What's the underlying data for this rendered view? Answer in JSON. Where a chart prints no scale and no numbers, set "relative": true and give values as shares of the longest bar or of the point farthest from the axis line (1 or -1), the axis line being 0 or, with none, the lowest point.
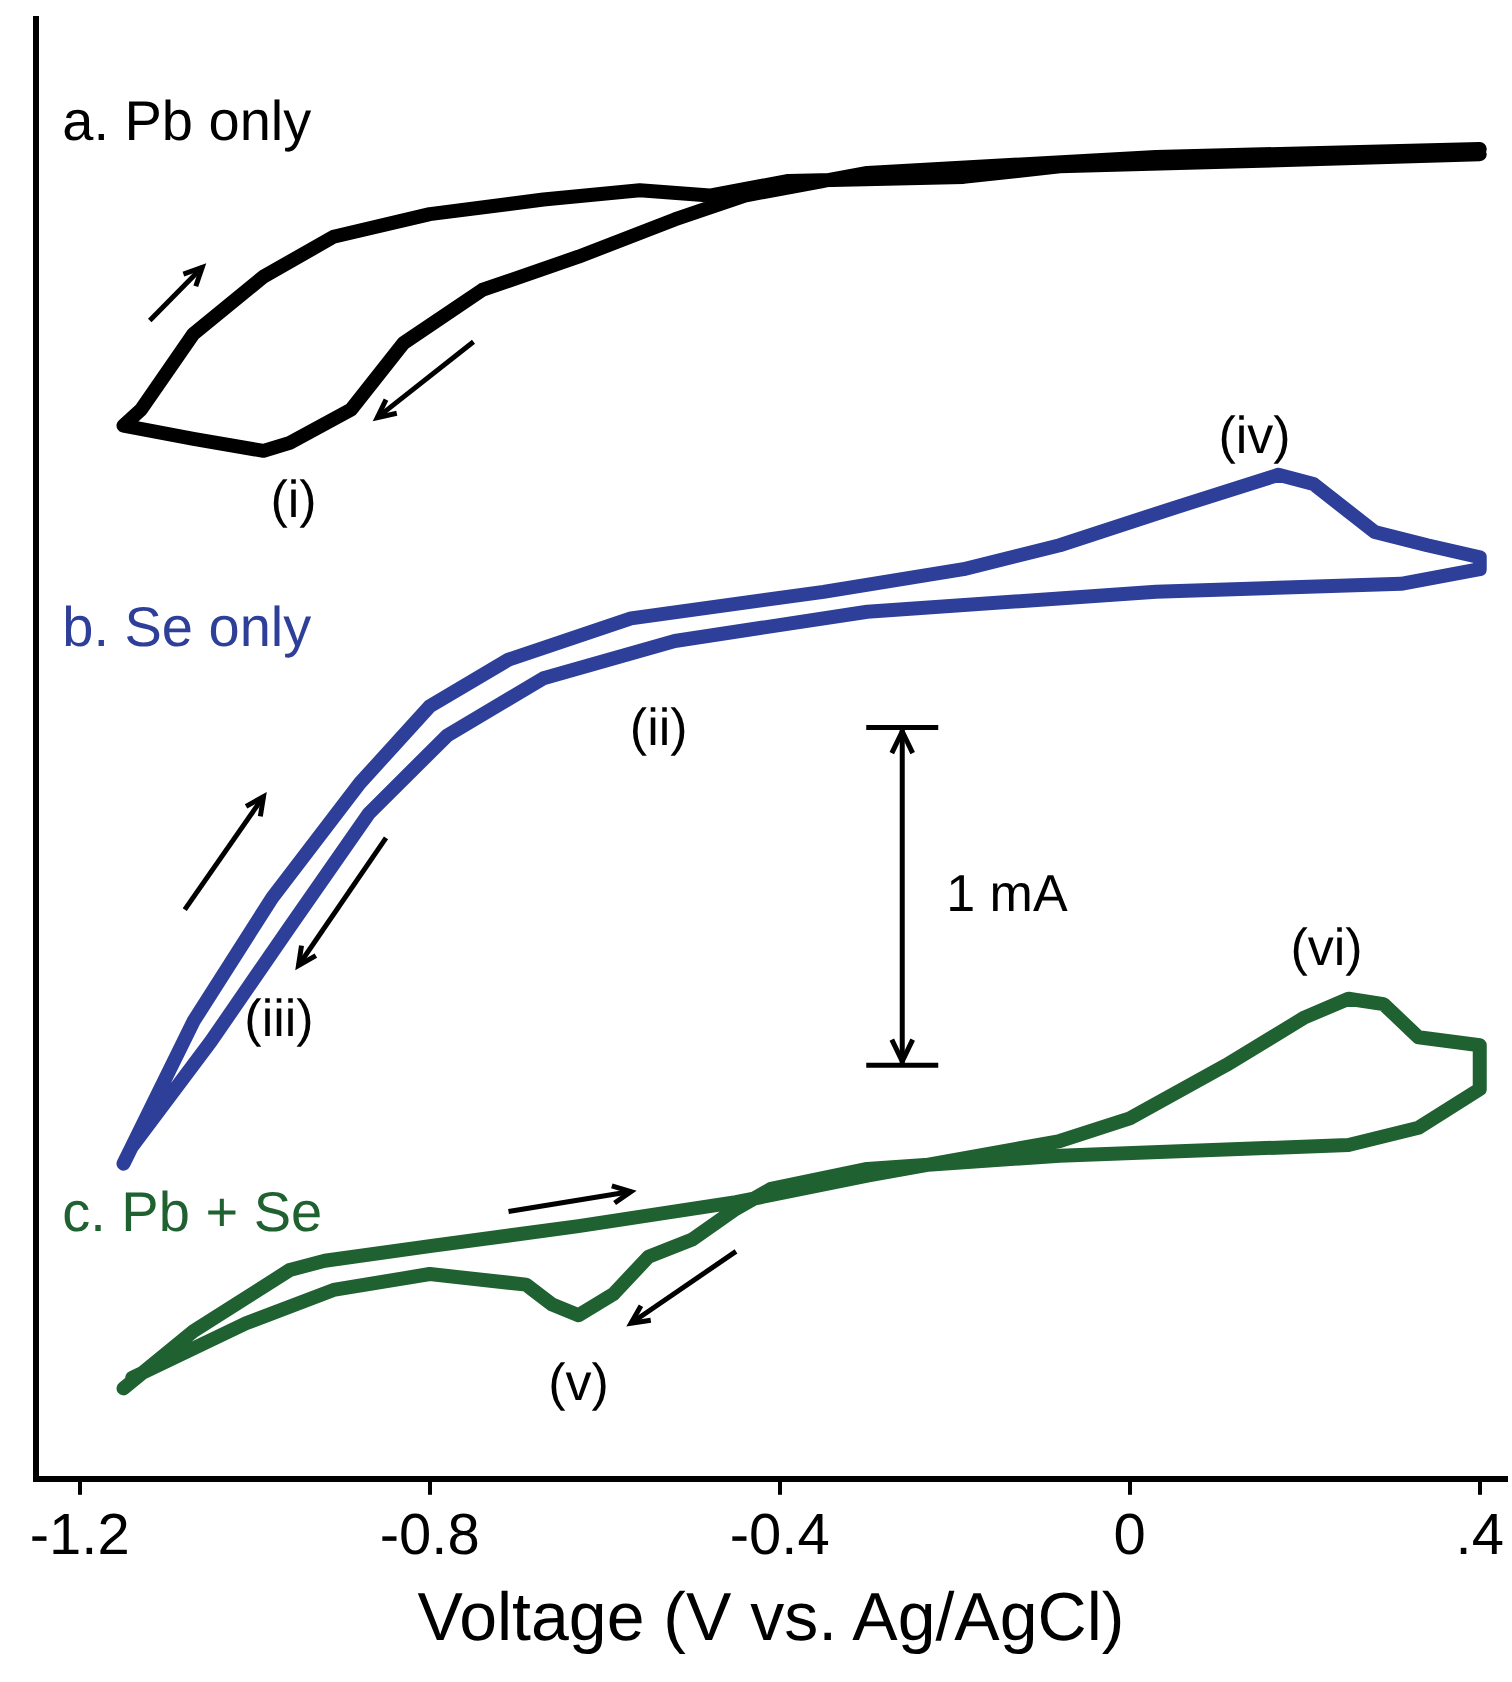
{
  "chart_data": {
    "type": "line",
    "relative": true,
    "xlabel": "Voltage (V vs. Ag/AgCl)",
    "xlim": [
      -1.25,
      0.43
    ],
    "xticks": [
      -1.2,
      -0.8,
      -0.4,
      0,
      {
        "value": 0.4,
        "label": ".4"
      }
    ],
    "marker": "none",
    "line_style": "solid",
    "series": [
      {
        "name": "a. Pb only",
        "color": "#000000",
        "x": [
          0.4,
          0.03,
          -0.3,
          -0.44,
          -0.52,
          -0.63,
          -0.74,
          -0.83,
          -0.89,
          -0.96,
          -0.99,
          -1.07,
          -1.15,
          -1.13,
          -1.07,
          -0.99,
          -0.91,
          -0.8,
          -0.67,
          -0.56,
          -0.48,
          -0.39,
          -0.19,
          -0.08,
          0.14,
          0.4
        ],
        "values": [
          1.0,
          0.994,
          0.982,
          0.965,
          0.947,
          0.919,
          0.894,
          0.854,
          0.804,
          0.779,
          0.773,
          0.782,
          0.792,
          0.804,
          0.861,
          0.904,
          0.934,
          0.951,
          0.962,
          0.969,
          0.965,
          0.976,
          0.979,
          0.987,
          0.991,
          0.996
        ]
      },
      {
        "name": "b. Se only",
        "color": "#2e3f9a",
        "x": [
          -1.15,
          -1.07,
          -0.98,
          -0.88,
          -0.8,
          -0.71,
          -0.57,
          -0.35,
          -0.19,
          -0.08,
          0.05,
          0.17,
          0.21,
          0.28,
          0.34,
          0.4,
          0.4,
          0.31,
          0.03,
          -0.3,
          -0.52,
          -0.67,
          -0.78,
          -0.87,
          -0.96,
          -1.05,
          -1.14
        ],
        "values": [
          0.237,
          0.344,
          0.437,
          0.523,
          0.581,
          0.616,
          0.647,
          0.667,
          0.684,
          0.702,
          0.73,
          0.755,
          0.748,
          0.712,
          0.702,
          0.693,
          0.684,
          0.673,
          0.667,
          0.652,
          0.63,
          0.602,
          0.559,
          0.5,
          0.415,
          0.329,
          0.25
        ]
      },
      {
        "name": "c. Pb + Se",
        "color": "#1f6130",
        "x": [
          -1.15,
          -1.07,
          -0.96,
          -0.92,
          -0.8,
          -0.63,
          -0.45,
          -0.3,
          -0.08,
          0.0,
          0.11,
          0.2,
          0.25,
          0.29,
          0.33,
          0.4,
          0.4,
          0.33,
          0.25,
          -0.08,
          -0.3,
          -0.41,
          -0.45,
          -0.5,
          -0.55,
          -0.59,
          -0.63,
          -0.66,
          -0.69,
          -0.8,
          -0.91,
          -1.01,
          -1.14
        ],
        "values": [
          0.068,
          0.111,
          0.157,
          0.164,
          0.175,
          0.19,
          0.208,
          0.228,
          0.254,
          0.271,
          0.311,
          0.347,
          0.361,
          0.357,
          0.332,
          0.326,
          0.293,
          0.264,
          0.251,
          0.243,
          0.233,
          0.218,
          0.203,
          0.18,
          0.167,
          0.139,
          0.123,
          0.131,
          0.146,
          0.154,
          0.142,
          0.117,
          0.076
        ]
      }
    ],
    "annotations": [
      {
        "text": "(i)",
        "x": -0.99,
        "y": 0.773
      },
      {
        "text": "(ii)",
        "x": -0.52,
        "y": 0.63
      },
      {
        "text": "(iii)",
        "x": -1.05,
        "y": 0.329
      },
      {
        "text": "(iv)",
        "x": 0.17,
        "y": 0.755
      },
      {
        "text": "(v)",
        "x": -0.63,
        "y": 0.123
      },
      {
        "text": "(vi)",
        "x": 0.25,
        "y": 0.361
      },
      "1 mA"
    ]
  }
}
